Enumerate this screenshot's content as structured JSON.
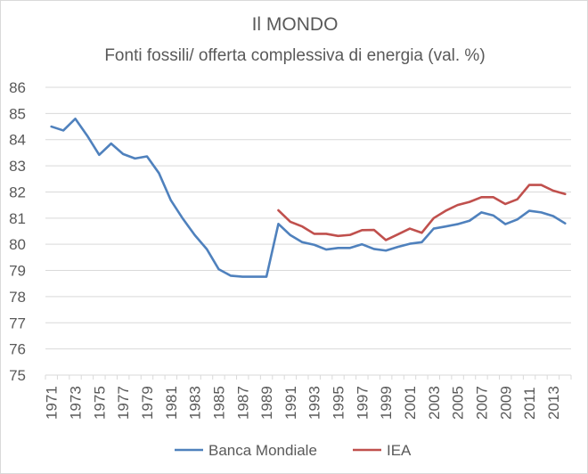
{
  "chart_data": {
    "type": "line",
    "title": "Il MONDO",
    "subtitle": "Fonti fossili/ offerta complessiva di energia (val. %)",
    "xlabel": "",
    "ylabel": "",
    "x": [
      1971,
      1972,
      1973,
      1974,
      1975,
      1976,
      1977,
      1978,
      1979,
      1980,
      1981,
      1982,
      1983,
      1984,
      1985,
      1986,
      1987,
      1988,
      1989,
      1990,
      1991,
      1992,
      1993,
      1994,
      1995,
      1996,
      1997,
      1998,
      1999,
      2000,
      2001,
      2002,
      2003,
      2004,
      2005,
      2006,
      2007,
      2008,
      2009,
      2010,
      2011,
      2012,
      2013,
      2014
    ],
    "x_tick_labels": [
      "1971",
      "1973",
      "1975",
      "1977",
      "1979",
      "1981",
      "1983",
      "1985",
      "1987",
      "1989",
      "1991",
      "1993",
      "1995",
      "1997",
      "1999",
      "2001",
      "2003",
      "2005",
      "2007",
      "2009",
      "2011",
      "2013"
    ],
    "ylim": [
      75,
      86
    ],
    "y_ticks": [
      75,
      76,
      77,
      78,
      79,
      80,
      81,
      82,
      83,
      84,
      85,
      86
    ],
    "grid": "horizontal",
    "legend_position": "bottom",
    "series": [
      {
        "name": "Banca Mondiale",
        "color": "#4f81bd",
        "values": [
          84.5,
          84.35,
          84.8,
          84.15,
          83.42,
          83.85,
          83.45,
          83.28,
          83.36,
          82.72,
          81.68,
          80.98,
          80.35,
          79.82,
          79.05,
          78.8,
          78.76,
          78.76,
          78.76,
          80.78,
          80.35,
          80.08,
          79.98,
          79.8,
          79.86,
          79.86,
          80.0,
          79.82,
          79.76,
          79.9,
          80.02,
          80.08,
          80.6,
          80.68,
          80.77,
          80.9,
          81.22,
          81.1,
          80.77,
          80.95,
          81.28,
          81.22,
          81.08,
          80.8
        ]
      },
      {
        "name": "IEA",
        "color": "#c0504d",
        "values": [
          null,
          null,
          null,
          null,
          null,
          null,
          null,
          null,
          null,
          null,
          null,
          null,
          null,
          null,
          null,
          null,
          null,
          null,
          null,
          81.3,
          80.86,
          80.68,
          80.4,
          80.4,
          80.32,
          80.36,
          80.54,
          80.55,
          80.16,
          80.38,
          80.6,
          80.44,
          81.0,
          81.28,
          81.5,
          81.62,
          81.8,
          81.8,
          81.54,
          81.72,
          82.27,
          82.27,
          82.05,
          81.92
        ]
      }
    ]
  }
}
